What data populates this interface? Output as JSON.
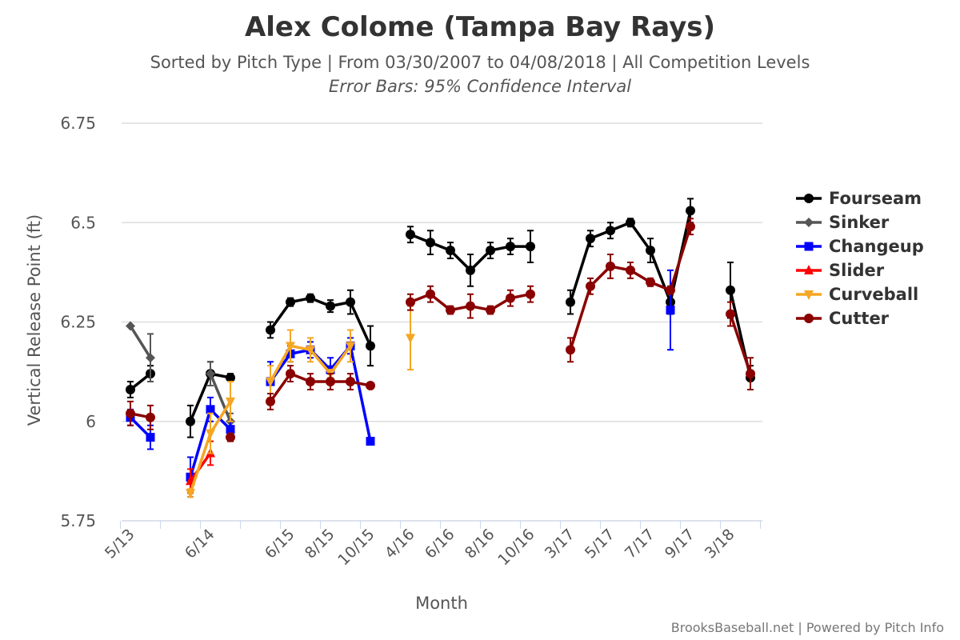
{
  "chart_data": {
    "type": "line",
    "title": "Alex Colome (Tampa Bay Rays)",
    "subtitle": "Sorted by Pitch Type | From 03/30/2007 to 04/08/2018 | All Competition Levels",
    "subtitle2": "Error Bars: 95% Confidence Interval",
    "xlabel": "Month",
    "ylabel": "Vertical Release Point (ft)",
    "ylim": [
      5.75,
      6.75
    ],
    "yticks": [
      "5.75",
      "6",
      "6.25",
      "6.5",
      "6.75"
    ],
    "categories": [
      "5/13",
      "",
      "",
      "",
      "6/14",
      "",
      "",
      "",
      "6/15",
      "",
      "8/15",
      "",
      "10/15",
      "",
      "4/16",
      "",
      "6/16",
      "",
      "8/16",
      "",
      "10/16",
      "",
      "3/17",
      "",
      "5/17",
      "",
      "7/17",
      "",
      "9/17",
      "",
      "3/18",
      ""
    ],
    "legend_position": "right",
    "credit": "BrooksBaseball.net | Powered by Pitch Info",
    "series": [
      {
        "name": "Fourseam",
        "color": "#000000",
        "marker": "circle",
        "values": [
          6.08,
          6.12,
          null,
          6.0,
          6.12,
          6.11,
          null,
          6.23,
          6.3,
          6.31,
          6.29,
          6.3,
          6.19,
          null,
          6.47,
          6.45,
          6.43,
          6.38,
          6.43,
          6.44,
          6.44,
          null,
          6.3,
          6.46,
          6.48,
          6.5,
          6.43,
          6.3,
          6.53,
          null,
          6.33,
          6.11
        ],
        "err": [
          0.02,
          0.02,
          0,
          0.04,
          0.03,
          0.01,
          0,
          0.02,
          0.01,
          0.01,
          0.015,
          0.03,
          0.05,
          0,
          0.02,
          0.03,
          0.02,
          0.04,
          0.02,
          0.02,
          0.04,
          0,
          0.03,
          0.02,
          0.02,
          0.01,
          0.03,
          0.03,
          0.03,
          0,
          0.07,
          0.03
        ]
      },
      {
        "name": "Sinker",
        "color": "#555555",
        "marker": "diamond",
        "values": [
          6.24,
          6.16,
          null,
          null,
          6.12,
          6.0,
          null,
          null,
          null,
          null,
          null,
          null,
          null,
          null,
          null,
          null,
          null,
          null,
          null,
          null,
          null,
          null,
          null,
          null,
          null,
          null,
          null,
          null,
          null,
          null,
          null,
          null
        ],
        "err": [
          0,
          0.06,
          0,
          0,
          0.03,
          0.02,
          0,
          0,
          0,
          0,
          0,
          0,
          0,
          0,
          0,
          0,
          0,
          0,
          0,
          0,
          0,
          0,
          0,
          0,
          0,
          0,
          0,
          0,
          0,
          0,
          0,
          0
        ]
      },
      {
        "name": "Changeup",
        "color": "#0000ff",
        "marker": "square",
        "values": [
          6.01,
          5.96,
          null,
          5.86,
          6.03,
          5.98,
          null,
          6.1,
          6.17,
          6.18,
          6.13,
          6.19,
          5.95,
          null,
          null,
          null,
          null,
          null,
          null,
          null,
          null,
          null,
          null,
          null,
          null,
          null,
          null,
          6.28,
          null,
          null,
          null,
          null
        ],
        "err": [
          0.02,
          0.03,
          0,
          0.05,
          0.03,
          0.02,
          0,
          0.05,
          0.02,
          0.02,
          0.03,
          0.02,
          0,
          0,
          0,
          0,
          0,
          0,
          0,
          0,
          0,
          0,
          0,
          0,
          0,
          0,
          0,
          0.1,
          0,
          0,
          0,
          0
        ]
      },
      {
        "name": "Slider",
        "color": "#ff0000",
        "marker": "triangle",
        "values": [
          null,
          null,
          null,
          5.85,
          5.92,
          null,
          null,
          null,
          null,
          null,
          null,
          null,
          null,
          null,
          null,
          null,
          null,
          null,
          null,
          null,
          null,
          null,
          null,
          null,
          null,
          null,
          null,
          null,
          null,
          null,
          null,
          null
        ],
        "err": [
          0,
          0,
          0,
          0.03,
          0.03,
          0,
          0,
          0,
          0,
          0,
          0,
          0,
          0,
          0,
          0,
          0,
          0,
          0,
          0,
          0,
          0,
          0,
          0,
          0,
          0,
          0,
          0,
          0,
          0,
          0,
          0,
          0
        ]
      },
      {
        "name": "Curveball",
        "color": "#f5a623",
        "marker": "triangle-down",
        "values": [
          null,
          null,
          null,
          5.82,
          5.97,
          6.05,
          null,
          6.1,
          6.19,
          6.18,
          6.12,
          6.19,
          null,
          null,
          6.21,
          null,
          null,
          null,
          null,
          null,
          null,
          null,
          null,
          null,
          null,
          null,
          null,
          null,
          null,
          null,
          null,
          null
        ],
        "err": [
          0,
          0,
          0,
          0.01,
          0.05,
          0.05,
          0,
          0.04,
          0.04,
          0.03,
          0.01,
          0.04,
          0,
          0,
          0.08,
          0,
          0,
          0,
          0,
          0,
          0,
          0,
          0,
          0,
          0,
          0,
          0,
          0,
          0,
          0,
          0,
          0
        ]
      },
      {
        "name": "Cutter",
        "color": "#8b0000",
        "marker": "circle",
        "values": [
          6.02,
          6.01,
          null,
          null,
          null,
          5.96,
          null,
          6.05,
          6.12,
          6.1,
          6.1,
          6.1,
          6.09,
          null,
          6.3,
          6.32,
          6.28,
          6.29,
          6.28,
          6.31,
          6.32,
          null,
          6.18,
          6.34,
          6.39,
          6.38,
          6.35,
          6.33,
          6.49,
          null,
          6.27,
          6.12
        ],
        "err": [
          0.03,
          0.03,
          0,
          0,
          0,
          0.01,
          0,
          0.02,
          0.02,
          0.02,
          0.02,
          0.02,
          0,
          0,
          0.02,
          0.02,
          0.01,
          0.03,
          0.01,
          0.02,
          0.02,
          0,
          0.03,
          0.02,
          0.03,
          0.02,
          0.01,
          0.01,
          0.02,
          0,
          0.03,
          0.04
        ]
      }
    ]
  }
}
